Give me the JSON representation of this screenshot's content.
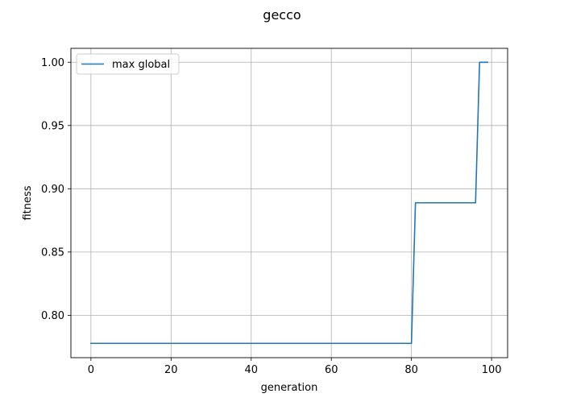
{
  "chart_data": {
    "type": "line",
    "title": "gecco",
    "xlabel": "generation",
    "ylabel": "fitness",
    "xlim": [
      -5,
      104
    ],
    "ylim": [
      0.7665,
      1.011
    ],
    "xticks": [
      0,
      20,
      40,
      60,
      80,
      100
    ],
    "xtick_labels": [
      "0",
      "20",
      "40",
      "60",
      "80",
      "100"
    ],
    "yticks": [
      0.8,
      0.85,
      0.9,
      0.95,
      1.0
    ],
    "ytick_labels": [
      "0.80",
      "0.85",
      "0.90",
      "0.95",
      "1.00"
    ],
    "grid": true,
    "legend_position": "upper-left",
    "series": [
      {
        "name": "max global",
        "color": "#1f77b4",
        "x": [
          0,
          80,
          81,
          96,
          97,
          99
        ],
        "y": [
          0.7778,
          0.7778,
          0.8889,
          0.8889,
          1.0,
          1.0
        ]
      }
    ]
  }
}
